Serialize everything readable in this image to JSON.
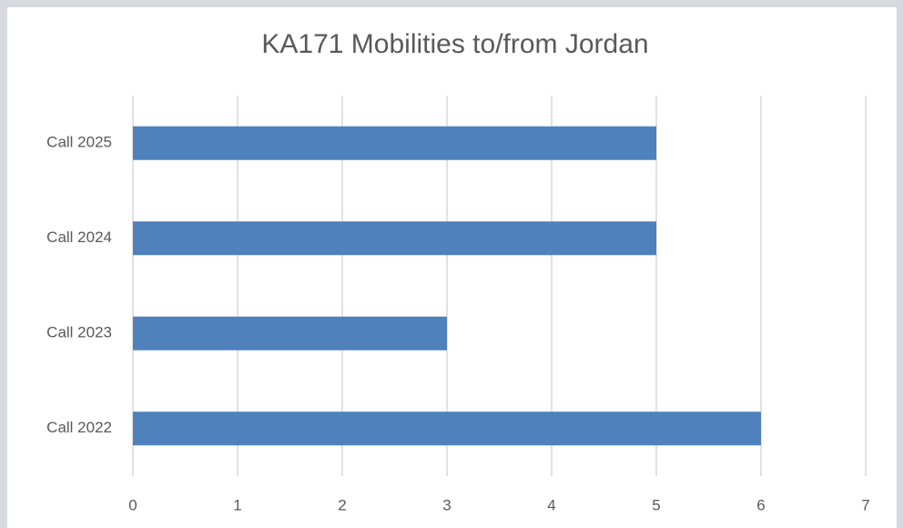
{
  "chart_data": {
    "type": "bar",
    "orientation": "horizontal",
    "title": "KA171 Mobilities to/from Jordan",
    "categories": [
      "Call 2022",
      "Call 2023",
      "Call 2024",
      "Call 2025"
    ],
    "values": [
      6,
      3,
      5,
      5
    ],
    "color": "#4f81bd",
    "xlim": [
      0,
      7
    ],
    "xticks": [
      0,
      1,
      2,
      3,
      4,
      5,
      6,
      7
    ],
    "grid": true
  }
}
